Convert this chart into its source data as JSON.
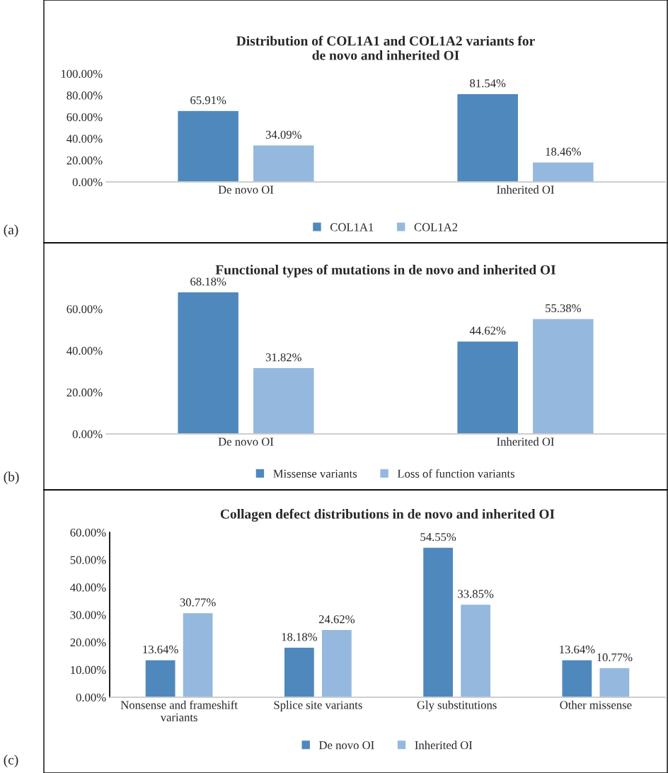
{
  "chart_data": [
    {
      "type": "bar",
      "title": "Distribution of COL1A1 and COL1A2 variants for\nde novo and inherited OI",
      "categories": [
        "De novo OI",
        "Inherited OI"
      ],
      "series": [
        {
          "name": "COL1A1",
          "color": "#4f88bd",
          "values": [
            65.91,
            81.54
          ],
          "value_labels": [
            "65.91%",
            "81.54%"
          ]
        },
        {
          "name": "COL1A2",
          "color": "#95b8de",
          "values": [
            34.09,
            18.46
          ],
          "value_labels": [
            "34.09%",
            "18.46%"
          ]
        }
      ],
      "ylim": [
        0,
        100
      ],
      "yticks": [
        {
          "value": 0,
          "label": "0.00%"
        },
        {
          "value": 20,
          "label": "20.00%"
        },
        {
          "value": 40,
          "label": "40.00%"
        },
        {
          "value": 60,
          "label": "60.00%"
        },
        {
          "value": 80,
          "label": "80.00%"
        },
        {
          "value": 100,
          "label": "100.00%"
        }
      ],
      "legend": "bottom",
      "grid": false,
      "annotations": [
        "(a)"
      ]
    },
    {
      "type": "bar",
      "title": "Functional types of mutations in de novo and inherited OI",
      "categories": [
        "De novo OI",
        "Inherited OI"
      ],
      "series": [
        {
          "name": "Missense variants",
          "color": "#4f88bd",
          "values": [
            68.18,
            44.62
          ],
          "value_labels": [
            "68.18%",
            "44.62%"
          ]
        },
        {
          "name": "Loss of function variants",
          "color": "#95b8de",
          "values": [
            31.82,
            55.38
          ],
          "value_labels": [
            "31.82%",
            "55.38%"
          ]
        }
      ],
      "ylim": [
        0,
        70
      ],
      "yticks": [
        {
          "value": 0,
          "label": "0.00%"
        },
        {
          "value": 20,
          "label": "20.00%"
        },
        {
          "value": 40,
          "label": "40.00%"
        },
        {
          "value": 60,
          "label": "60.00%"
        }
      ],
      "legend": "bottom",
      "grid": false,
      "annotations": [
        "(b)"
      ]
    },
    {
      "type": "bar",
      "title": "Collagen defect distributions in de novo and inherited OI",
      "categories": [
        "Nonsense and frameshift\nvariants",
        "Splice site variants",
        "Gly substitutions",
        "Other missense"
      ],
      "series": [
        {
          "name": "De novo OI",
          "color": "#4f88bd",
          "values": [
            13.64,
            18.18,
            54.55,
            13.64
          ],
          "value_labels": [
            "13.64%",
            "18.18%",
            "54.55%",
            "13.64%"
          ]
        },
        {
          "name": "Inherited OI",
          "color": "#95b8de",
          "values": [
            30.77,
            24.62,
            33.85,
            10.77
          ],
          "value_labels": [
            "30.77%",
            "24.62%",
            "33.85%",
            "10.77%"
          ]
        }
      ],
      "ylim": [
        0,
        60
      ],
      "yticks": [
        {
          "value": 0,
          "label": "0.00%"
        },
        {
          "value": 10,
          "label": "10.00%"
        },
        {
          "value": 20,
          "label": "20.00%"
        },
        {
          "value": 30,
          "label": "30.00%"
        },
        {
          "value": 40,
          "label": "40.00%"
        },
        {
          "value": 50,
          "label": "50.00%"
        },
        {
          "value": 60,
          "label": "60.00%"
        }
      ],
      "legend": "bottom",
      "grid": false,
      "annotations": [
        "(c)"
      ]
    }
  ]
}
